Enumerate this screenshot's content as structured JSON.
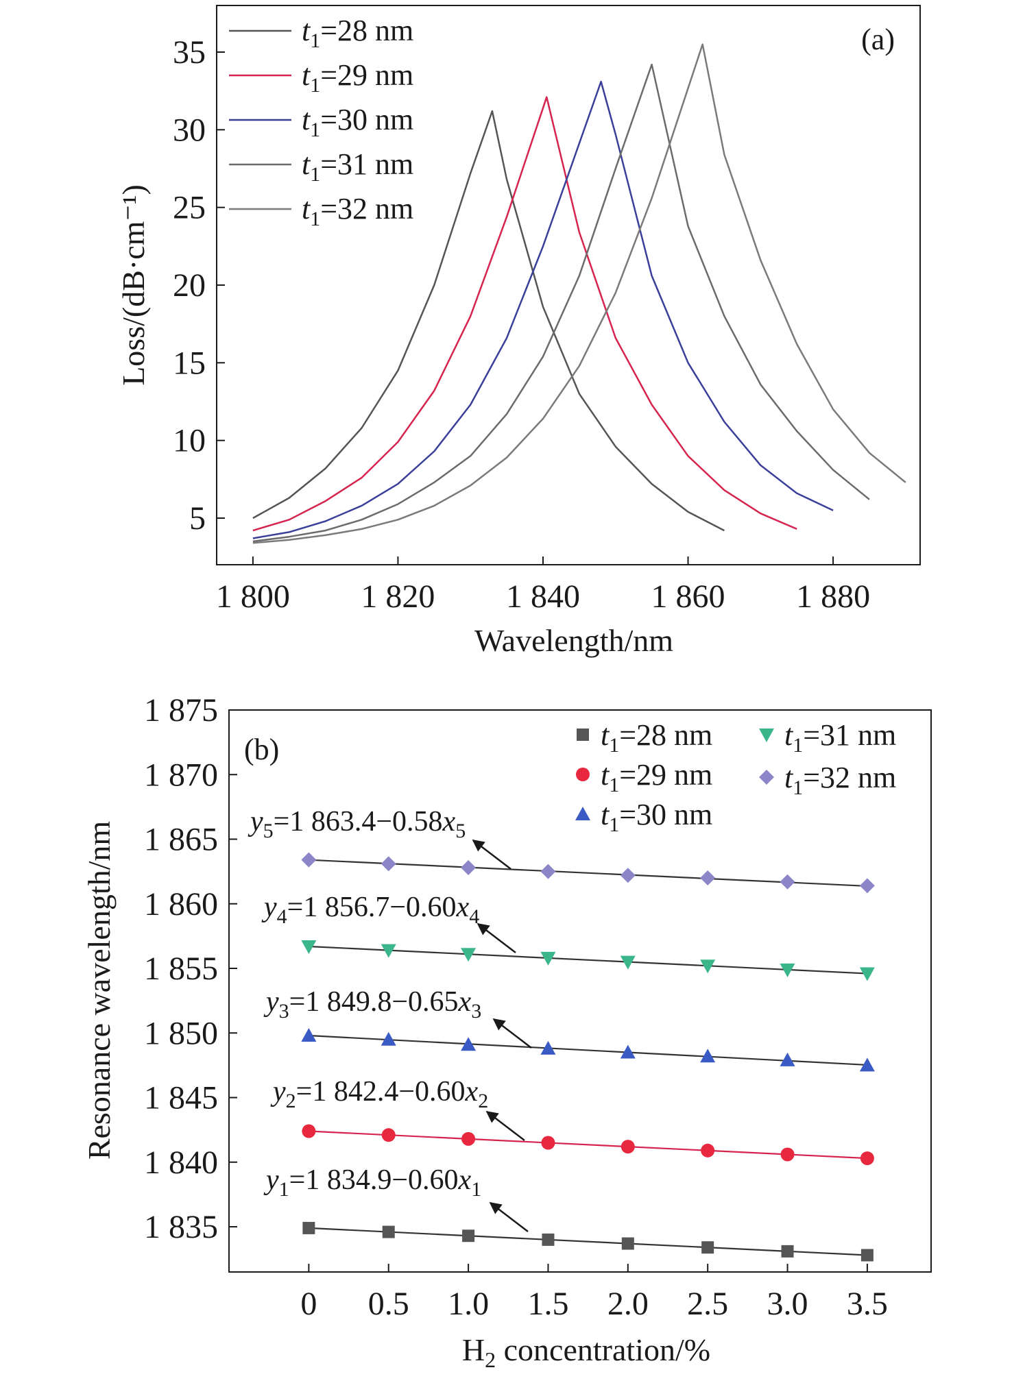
{
  "chart_data": [
    {
      "type": "line",
      "panel_label": "(a)",
      "xlabel": "Wavelength/nm",
      "ylabel": "Loss/(dB·cm⁻¹)",
      "xlim": [
        1795,
        1892
      ],
      "ylim": [
        2,
        38
      ],
      "x_ticks": [
        1800,
        1820,
        1840,
        1860,
        1880
      ],
      "x_tick_labels": [
        "1 800",
        "1 820",
        "1 840",
        "1 860",
        "1 880"
      ],
      "y_ticks": [
        5,
        10,
        15,
        20,
        25,
        30,
        35
      ],
      "y_tick_labels": [
        "5",
        "10",
        "15",
        "20",
        "25",
        "30",
        "35"
      ],
      "legend_position": "top-left",
      "series": [
        {
          "name": "t1=28 nm",
          "name_var": "t",
          "name_sub": "1",
          "name_rest": "=28 nm",
          "color": "#555555",
          "x": [
            1800,
            1805,
            1810,
            1815,
            1820,
            1825,
            1830,
            1833,
            1835,
            1840,
            1845,
            1850,
            1855,
            1860,
            1865
          ],
          "y": [
            5.0,
            6.3,
            8.2,
            10.8,
            14.5,
            20.0,
            27.2,
            31.2,
            26.8,
            18.6,
            13.0,
            9.6,
            7.2,
            5.4,
            4.2
          ]
        },
        {
          "name": "t1=29 nm",
          "name_var": "t",
          "name_sub": "1",
          "name_rest": "=29 nm",
          "color": "#d6244e",
          "x": [
            1800,
            1805,
            1810,
            1815,
            1820,
            1825,
            1830,
            1835,
            1840.5,
            1845,
            1850,
            1855,
            1860,
            1865,
            1870,
            1875
          ],
          "y": [
            4.2,
            4.9,
            6.1,
            7.6,
            9.9,
            13.2,
            18.0,
            24.4,
            32.1,
            23.4,
            16.6,
            12.3,
            9.0,
            6.8,
            5.3,
            4.3
          ]
        },
        {
          "name": "t1=30 nm",
          "name_var": "t",
          "name_sub": "1",
          "name_rest": "=30 nm",
          "color": "#3a3f9a",
          "x": [
            1800,
            1805,
            1810,
            1815,
            1820,
            1825,
            1830,
            1835,
            1840,
            1848,
            1850,
            1855,
            1860,
            1865,
            1870,
            1875,
            1880
          ],
          "y": [
            3.7,
            4.1,
            4.8,
            5.8,
            7.2,
            9.3,
            12.3,
            16.6,
            22.5,
            33.1,
            29.7,
            20.6,
            15.0,
            11.2,
            8.4,
            6.6,
            5.5
          ]
        },
        {
          "name": "t1=31 nm",
          "name_var": "t",
          "name_sub": "1",
          "name_rest": "=31 nm",
          "color": "#6b6b6b",
          "x": [
            1800,
            1805,
            1810,
            1815,
            1820,
            1825,
            1830,
            1835,
            1840,
            1845,
            1850,
            1855,
            1860,
            1865,
            1870,
            1875,
            1880,
            1885
          ],
          "y": [
            3.5,
            3.8,
            4.2,
            4.9,
            5.9,
            7.3,
            9.0,
            11.7,
            15.4,
            20.6,
            27.5,
            34.2,
            23.8,
            18.0,
            13.6,
            10.6,
            8.1,
            6.2
          ]
        },
        {
          "name": "t1=32 nm",
          "name_var": "t",
          "name_sub": "1",
          "name_rest": "=32 nm",
          "color": "#7a7a7a",
          "x": [
            1800,
            1805,
            1810,
            1815,
            1820,
            1825,
            1830,
            1835,
            1840,
            1845,
            1850,
            1855,
            1862,
            1865,
            1870,
            1875,
            1880,
            1885,
            1890
          ],
          "y": [
            3.4,
            3.6,
            3.9,
            4.3,
            4.9,
            5.8,
            7.1,
            8.9,
            11.4,
            14.8,
            19.5,
            25.6,
            35.5,
            28.4,
            21.6,
            16.2,
            12.0,
            9.2,
            7.3
          ]
        }
      ]
    },
    {
      "type": "scatter",
      "panel_label": "(b)",
      "xlabel": "H2 concentration/%",
      "xlabel_parts": {
        "main": "H",
        "sub": "2",
        "rest": " concentration/%"
      },
      "ylabel": "Resonance wavelength/nm",
      "xlim": [
        -0.5,
        3.9
      ],
      "ylim": [
        1831.5,
        1875
      ],
      "x_ticks": [
        0,
        0.5,
        1.0,
        1.5,
        2.0,
        2.5,
        3.0,
        3.5
      ],
      "x_tick_labels": [
        "0",
        "0.5",
        "1.0",
        "1.5",
        "2.0",
        "2.5",
        "3.0",
        "3.5"
      ],
      "y_ticks": [
        1835,
        1840,
        1845,
        1850,
        1855,
        1860,
        1865,
        1870,
        1875
      ],
      "y_tick_labels": [
        "1 835",
        "1 840",
        "1 845",
        "1 850",
        "1 855",
        "1 860",
        "1 865",
        "1 870",
        "1 875"
      ],
      "legend_position": "top-right",
      "x": [
        0,
        0.5,
        1.0,
        1.5,
        2.0,
        2.5,
        3.0,
        3.5
      ],
      "series": [
        {
          "name": "t1=28 nm",
          "name_var": "t",
          "name_sub": "1",
          "name_rest": "=28 nm",
          "marker": "square",
          "color": "#555555",
          "line_color": "#333333",
          "values": [
            1834.9,
            1834.6,
            1834.3,
            1834.0,
            1833.7,
            1833.4,
            1833.1,
            1832.8
          ],
          "fit": {
            "intercept": 1834.9,
            "slope": -0.6,
            "var": "1",
            "lhs": "y",
            "const": "=1 834.9−0.60",
            "x": "x"
          }
        },
        {
          "name": "t1=29 nm",
          "name_var": "t",
          "name_sub": "1",
          "name_rest": "=29 nm",
          "marker": "circle",
          "color": "#e8283e",
          "line_color": "#d6244e",
          "values": [
            1842.4,
            1842.1,
            1841.8,
            1841.5,
            1841.2,
            1840.9,
            1840.6,
            1840.3
          ],
          "fit": {
            "intercept": 1842.4,
            "slope": -0.6,
            "var": "2",
            "lhs": "y",
            "const": "=1 842.4−0.60",
            "x": "x"
          }
        },
        {
          "name": "t1=30 nm",
          "name_var": "t",
          "name_sub": "1",
          "name_rest": "=30 nm",
          "marker": "triangle-up",
          "color": "#3b5bc4",
          "line_color": "#333333",
          "values": [
            1849.8,
            1849.5,
            1849.1,
            1848.8,
            1848.5,
            1848.2,
            1847.9,
            1847.5
          ],
          "fit": {
            "intercept": 1849.8,
            "slope": -0.65,
            "var": "3",
            "lhs": "y",
            "const": "=1 849.8−0.65",
            "x": "x"
          }
        },
        {
          "name": "t1=31 nm",
          "name_var": "t",
          "name_sub": "1",
          "name_rest": "=31 nm",
          "marker": "triangle-down",
          "color": "#3bb58a",
          "line_color": "#333333",
          "values": [
            1856.7,
            1856.4,
            1856.1,
            1855.8,
            1855.5,
            1855.2,
            1854.9,
            1854.6
          ],
          "fit": {
            "intercept": 1856.7,
            "slope": -0.6,
            "var": "4",
            "lhs": "y",
            "const": "=1 856.7−0.60",
            "x": "x"
          }
        },
        {
          "name": "t1=32 nm",
          "name_var": "t",
          "name_sub": "1",
          "name_rest": "=32 nm",
          "marker": "diamond",
          "color": "#8c86c8",
          "line_color": "#333333",
          "values": [
            1863.4,
            1863.1,
            1862.8,
            1862.5,
            1862.2,
            1862.0,
            1861.7,
            1861.4
          ],
          "fit": {
            "intercept": 1863.4,
            "slope": -0.58,
            "var": "5",
            "lhs": "y",
            "const": "=1 863.4−0.58",
            "x": "x"
          }
        }
      ]
    }
  ]
}
